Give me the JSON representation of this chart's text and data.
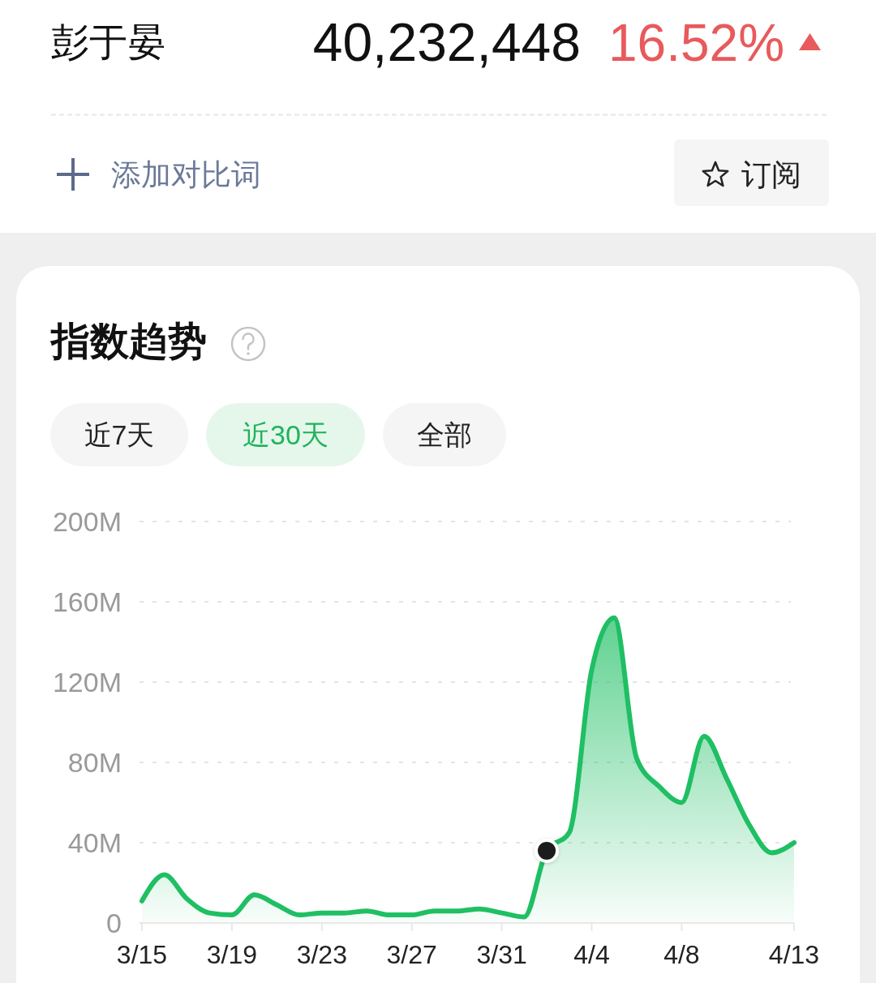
{
  "chart_data": {
    "type": "area",
    "title": "指数趋势",
    "annotations": [
      "彭于晏",
      "40,232,448",
      "16.52%",
      "添加对比词",
      "订阅",
      "近7天",
      "近30天",
      "全部"
    ],
    "categories": [
      "3/15",
      null,
      null,
      null,
      "3/19",
      null,
      null,
      null,
      "3/23",
      null,
      null,
      null,
      "3/27",
      null,
      null,
      null,
      "3/31",
      null,
      null,
      null,
      "4/4",
      null,
      null,
      null,
      "4/8",
      null,
      null,
      null,
      null,
      "4/13"
    ],
    "series": [
      {
        "color": "#1fbf64",
        "values": [
          11,
          24,
          12,
          5,
          4,
          14,
          9,
          4,
          5,
          5,
          6,
          4,
          4,
          6,
          6,
          7,
          5,
          3,
          36,
          45,
          126,
          152,
          82,
          68,
          60,
          93,
          72,
          49,
          35,
          40
        ]
      },
      {
        "type": "scatter",
        "color": "#1a1a1a",
        "marker": "circle",
        "values": [
          null,
          null,
          null,
          null,
          null,
          null,
          null,
          null,
          null,
          null,
          null,
          null,
          null,
          null,
          null,
          null,
          null,
          null,
          36,
          null,
          null,
          null,
          null,
          null,
          null,
          null,
          null,
          null,
          null,
          null
        ]
      }
    ],
    "ylim": [
      0,
      200
    ],
    "yticks": [
      0,
      {
        "value": 40,
        "label": "40M"
      },
      {
        "value": 80,
        "label": "80M"
      },
      {
        "value": 120,
        "label": "120M"
      },
      {
        "value": 160,
        "label": "160M"
      },
      {
        "value": 200,
        "label": "200M"
      }
    ],
    "grid": "y"
  }
}
